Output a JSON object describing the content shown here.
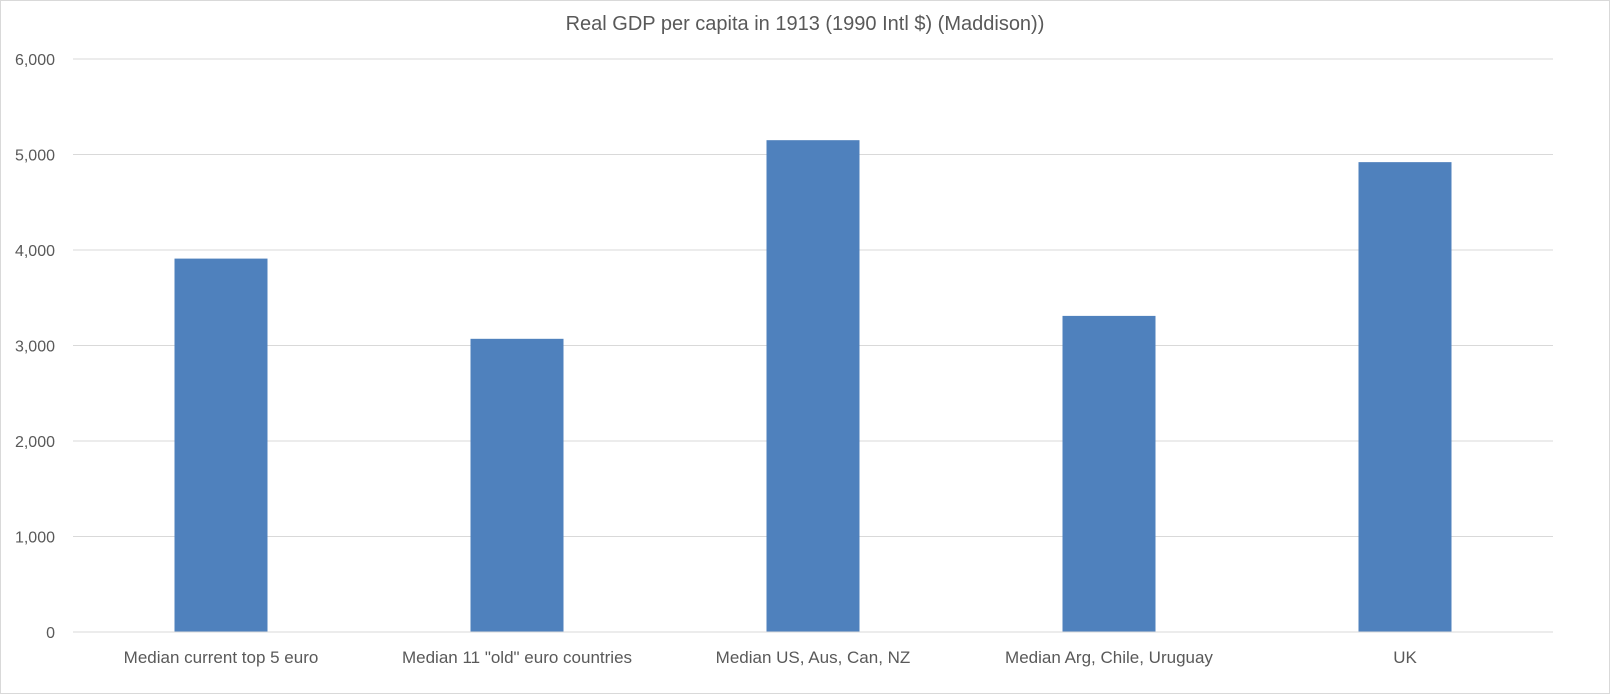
{
  "chart_data": {
    "type": "bar",
    "title": "Real GDP per capita in 1913 (1990 Intl $) (Maddison))",
    "xlabel": "",
    "ylabel": "",
    "categories": [
      "Median current top 5 euro",
      "Median 11 \"old\" euro countries",
      "Median US, Aus, Can, NZ",
      "Median Arg, Chile, Uruguay",
      "UK"
    ],
    "values": [
      3910,
      3070,
      5150,
      3310,
      4920
    ],
    "ylim": [
      0,
      6000
    ],
    "yticks": [
      0,
      1000,
      2000,
      3000,
      4000,
      5000,
      6000
    ],
    "ytick_labels": [
      "0",
      "1,000",
      "2,000",
      "3,000",
      "4,000",
      "5,000",
      "6,000"
    ],
    "grid": true,
    "legend": "none",
    "colors": {
      "bar": "#4f81bd",
      "grid": "#d9d9d9",
      "text": "#595959"
    }
  }
}
